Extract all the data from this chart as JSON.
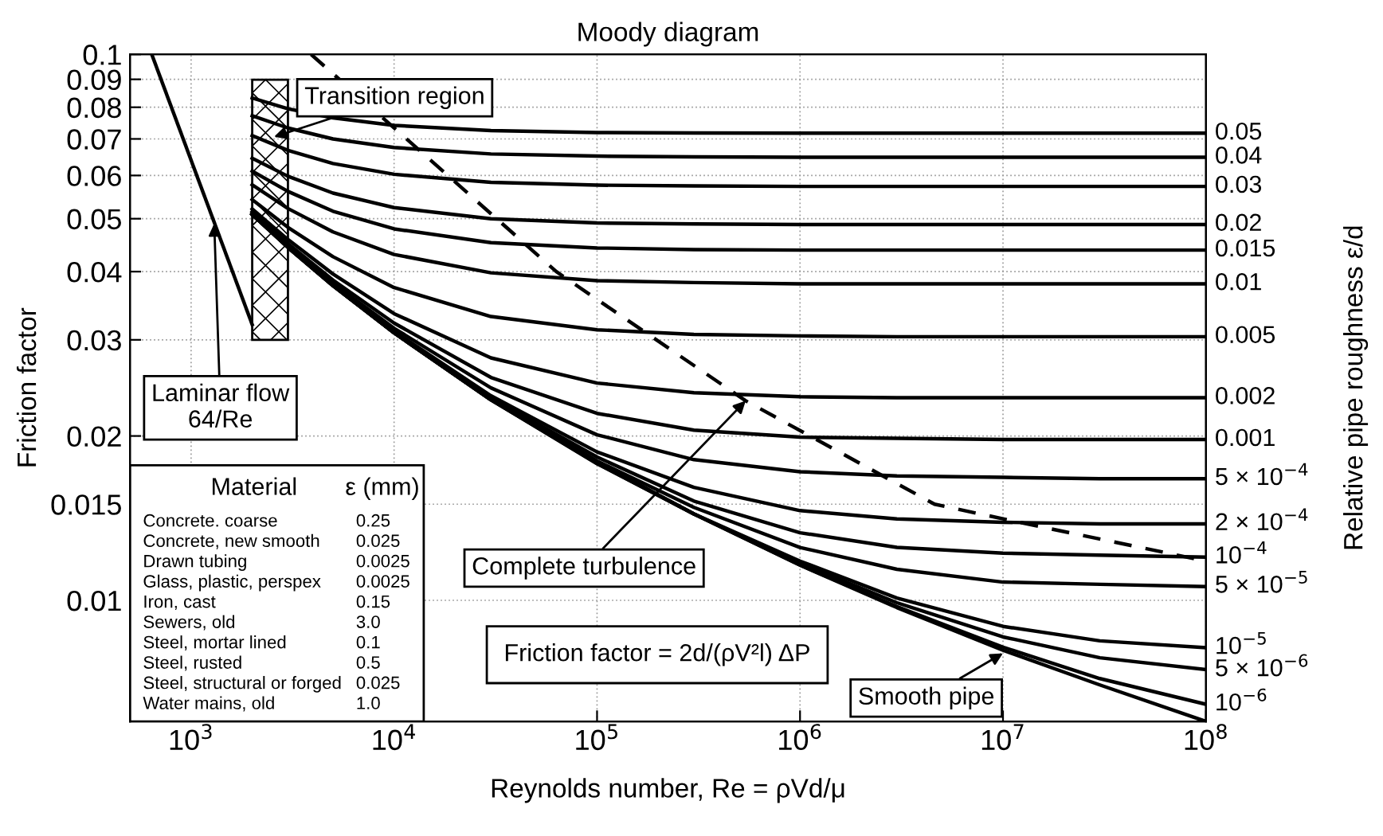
{
  "chart_data": {
    "type": "line",
    "title": "Moody diagram",
    "xlabel": "Reynolds number, Re = ρVd/μ",
    "ylabel": "Friction factor",
    "y2label": "Relative pipe roughness ε/d",
    "log": "xy",
    "grid": true,
    "xlim": [
      500,
      100000000
    ],
    "ylim": [
      0.006,
      0.1
    ],
    "xticks": [
      {
        "value": 1000,
        "label": "10$^{3}$"
      },
      {
        "value": 10000,
        "label": "10$^{4}$"
      },
      {
        "value": 100000,
        "label": "10$^{5}$"
      },
      {
        "value": 1000000,
        "label": "10$^{6}$"
      },
      {
        "value": 10000000,
        "label": "10$^{7}$"
      },
      {
        "value": 100000000,
        "label": "10$^{8}$"
      }
    ],
    "yticks": [
      0.01,
      0.015,
      0.02,
      0.03,
      0.04,
      0.05,
      0.06,
      0.07,
      0.08,
      0.09,
      0.1
    ],
    "x": [
      2000,
      3000,
      5000,
      10000,
      30000,
      100000,
      300000,
      1000000,
      3000000,
      10000000,
      30000000,
      100000000
    ],
    "series": [
      {
        "name": "0.05",
        "color": "#000000",
        "values": [
          0.0832,
          0.0795,
          0.0765,
          0.0741,
          0.0725,
          0.0719,
          0.0718,
          0.0717,
          0.0717,
          0.0717,
          0.0717,
          0.0717
        ]
      },
      {
        "name": "0.04",
        "color": "#000000",
        "values": [
          0.0772,
          0.0733,
          0.07,
          0.0675,
          0.0657,
          0.0651,
          0.0649,
          0.0648,
          0.0648,
          0.0648,
          0.0648,
          0.0648
        ]
      },
      {
        "name": "0.03",
        "color": "#000000",
        "values": [
          0.071,
          0.0667,
          0.0631,
          0.0603,
          0.0583,
          0.0576,
          0.0574,
          0.0573,
          0.0573,
          0.0573,
          0.0573,
          0.0573
        ]
      },
      {
        "name": "0.02",
        "color": "#000000",
        "values": [
          0.0645,
          0.0598,
          0.0557,
          0.0524,
          0.05,
          0.0491,
          0.0489,
          0.0488,
          0.0488,
          0.0488,
          0.0488,
          0.0488
        ]
      },
      {
        "name": "0.015",
        "color": "#000000",
        "values": [
          0.0611,
          0.0561,
          0.0516,
          0.0479,
          0.0452,
          0.0442,
          0.0439,
          0.0438,
          0.0438,
          0.0438,
          0.0438,
          0.0438
        ]
      },
      {
        "name": "0.01",
        "color": "#000000",
        "values": [
          0.0577,
          0.0522,
          0.0473,
          0.043,
          0.0398,
          0.0385,
          0.0382,
          0.038,
          0.038,
          0.038,
          0.038,
          0.038
        ]
      },
      {
        "name": "0.005",
        "color": "#000000",
        "values": [
          0.0542,
          0.0482,
          0.0426,
          0.0374,
          0.0331,
          0.0313,
          0.0307,
          0.0305,
          0.0304,
          0.0304,
          0.0304,
          0.0304
        ]
      },
      {
        "name": "0.002",
        "color": "#000000",
        "values": [
          0.0521,
          0.0458,
          0.0396,
          0.0335,
          0.0278,
          0.025,
          0.024,
          0.0236,
          0.0235,
          0.0235,
          0.0235,
          0.0235
        ]
      },
      {
        "name": "0.001",
        "color": "#000000",
        "values": [
          0.0515,
          0.045,
          0.0386,
          0.0322,
          0.0256,
          0.022,
          0.0205,
          0.0199,
          0.0198,
          0.0197,
          0.0197,
          0.0197
        ]
      },
      {
        "name": "5 × 10$^{−4}$",
        "color": "#000000",
        "values": [
          0.0512,
          0.0447,
          0.0381,
          0.0315,
          0.0245,
          0.0201,
          0.0181,
          0.0172,
          0.0169,
          0.0168,
          0.0167,
          0.0167
        ]
      },
      {
        "name": "2 × 10$^{−4}$",
        "color": "#000000",
        "values": [
          0.051,
          0.0445,
          0.0379,
          0.0311,
          0.0237,
          0.0187,
          0.0161,
          0.0146,
          0.0141,
          0.0139,
          0.0138,
          0.0138
        ]
      },
      {
        "name": "10$^{−4}$",
        "color": "#000000",
        "values": [
          0.051,
          0.0444,
          0.0378,
          0.031,
          0.0235,
          0.0183,
          0.0152,
          0.0133,
          0.0125,
          0.0122,
          0.0121,
          0.012
        ]
      },
      {
        "name": "5 × 10$^{−5}$",
        "color": "#000000",
        "values": [
          0.0509,
          0.0444,
          0.0378,
          0.0309,
          0.0234,
          0.018,
          0.0148,
          0.0125,
          0.0114,
          0.0108,
          0.0107,
          0.0106
        ]
      },
      {
        "name": "10$^{−5}$",
        "color": "#000000",
        "values": [
          0.0509,
          0.0443,
          0.0377,
          0.0309,
          0.0233,
          0.0179,
          0.0144,
          0.0118,
          0.0101,
          0.00896,
          0.00843,
          0.00819
        ]
      },
      {
        "name": "5 × 10$^{−6}$",
        "color": "#000000",
        "values": [
          0.0509,
          0.0443,
          0.0377,
          0.0309,
          0.0233,
          0.0179,
          0.0144,
          0.0117,
          0.0099,
          0.00857,
          0.00785,
          0.00747
        ]
      },
      {
        "name": "10$^{−6}$",
        "color": "#000000",
        "values": [
          0.0509,
          0.0443,
          0.0377,
          0.0309,
          0.0233,
          0.0178,
          0.0144,
          0.0116,
          0.00974,
          0.00821,
          0.00719,
          0.00645
        ]
      },
      {
        "color": "#000000",
        "values": [
          0.0509,
          0.0443,
          0.0377,
          0.0309,
          0.0233,
          0.0178,
          0.0144,
          0.0116,
          0.0097,
          0.0081,
          0.007,
          0.006
        ]
      },
      {
        "color": "#000000",
        "x": [
          640,
          2000
        ],
        "values": [
          0.1,
          0.032
        ]
      },
      {
        "color": "#000000",
        "line_style": "dashed",
        "x": [
          3900,
          63000,
          540000,
          4600000,
          10000000,
          100000000
        ],
        "values": [
          0.1,
          0.04,
          0.0232,
          0.015,
          0.0141,
          0.0118
        ]
      }
    ],
    "bands": [
      {
        "axis": "x",
        "from": 2000,
        "to": 3000,
        "color": "#000000"
      }
    ],
    "annotations": [
      {
        "text": "Laminar flow\n64/Re",
        "x": 1300,
        "y": 0.049
      },
      {
        "text": "Transition region",
        "x": 2560,
        "y": 0.0706
      },
      {
        "text": "Complete turbulence",
        "x": 540000,
        "y": 0.0232
      },
      {
        "text": "Smooth pipe",
        "x": 10000000,
        "y": 0.008
      },
      "Friction factor = 2d/(ρV²l) ΔP",
      "Material",
      "ε (mm)",
      "Concrete. coarse",
      "0.25",
      "Concrete, new smooth",
      "0.025",
      "Drawn tubing",
      "0.0025",
      "Glass, plastic, perspex",
      "0.0025",
      "Iron, cast",
      "0.15",
      "Sewers, old",
      "3.0",
      "Steel, mortar lined",
      "0.1",
      "Steel, rusted",
      "0.5",
      "Steel, structural or forged",
      "0.025",
      "Water mains, old",
      "1.0"
    ]
  }
}
